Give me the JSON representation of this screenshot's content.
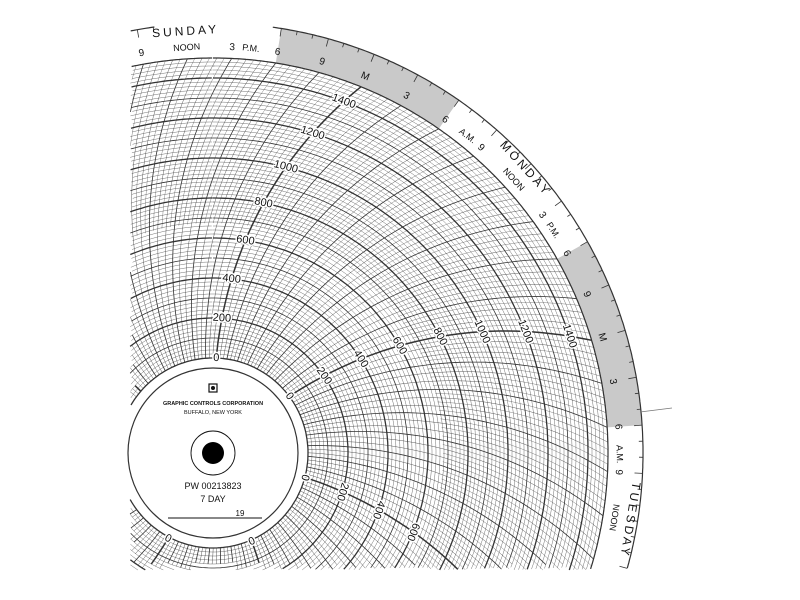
{
  "hub": {
    "company": "GRAPHIC CONTROLS CORPORATION",
    "city": "BUFFALO, NEW YORK",
    "part_number": "PW 00213823",
    "duration": "7 DAY",
    "year_prefix": "19"
  },
  "scale": {
    "min": 0,
    "max": 1500,
    "labels": [
      "0",
      "200",
      "400",
      "600",
      "800",
      "1000",
      "1200",
      "1400"
    ]
  },
  "time_band": {
    "hours_per_chart": 168,
    "marks": [
      {
        "hour": 0,
        "label": "M"
      },
      {
        "hour": 3,
        "label": "3"
      },
      {
        "hour": 6,
        "label": "6"
      },
      {
        "hour": 7.2,
        "label": "A.M."
      },
      {
        "hour": 9,
        "label": "9"
      },
      {
        "hour": 12,
        "label": "NOON"
      },
      {
        "hour": 15,
        "label": "3"
      },
      {
        "hour": 16.8,
        "label": "P.M."
      },
      {
        "hour": 18,
        "label": "6"
      },
      {
        "hour": 21,
        "label": "9"
      }
    ],
    "days": [
      {
        "name": "SUNDAY",
        "day_offset": -1
      },
      {
        "name": "MONDAY",
        "day_offset": 0
      },
      {
        "name": "TUESDAY",
        "day_offset": 1
      }
    ],
    "night_shading_hours": [
      18,
      30
    ]
  },
  "colors": {
    "grid": "#333333",
    "band_shade": "#c9c9c9",
    "ink": "#111111"
  }
}
